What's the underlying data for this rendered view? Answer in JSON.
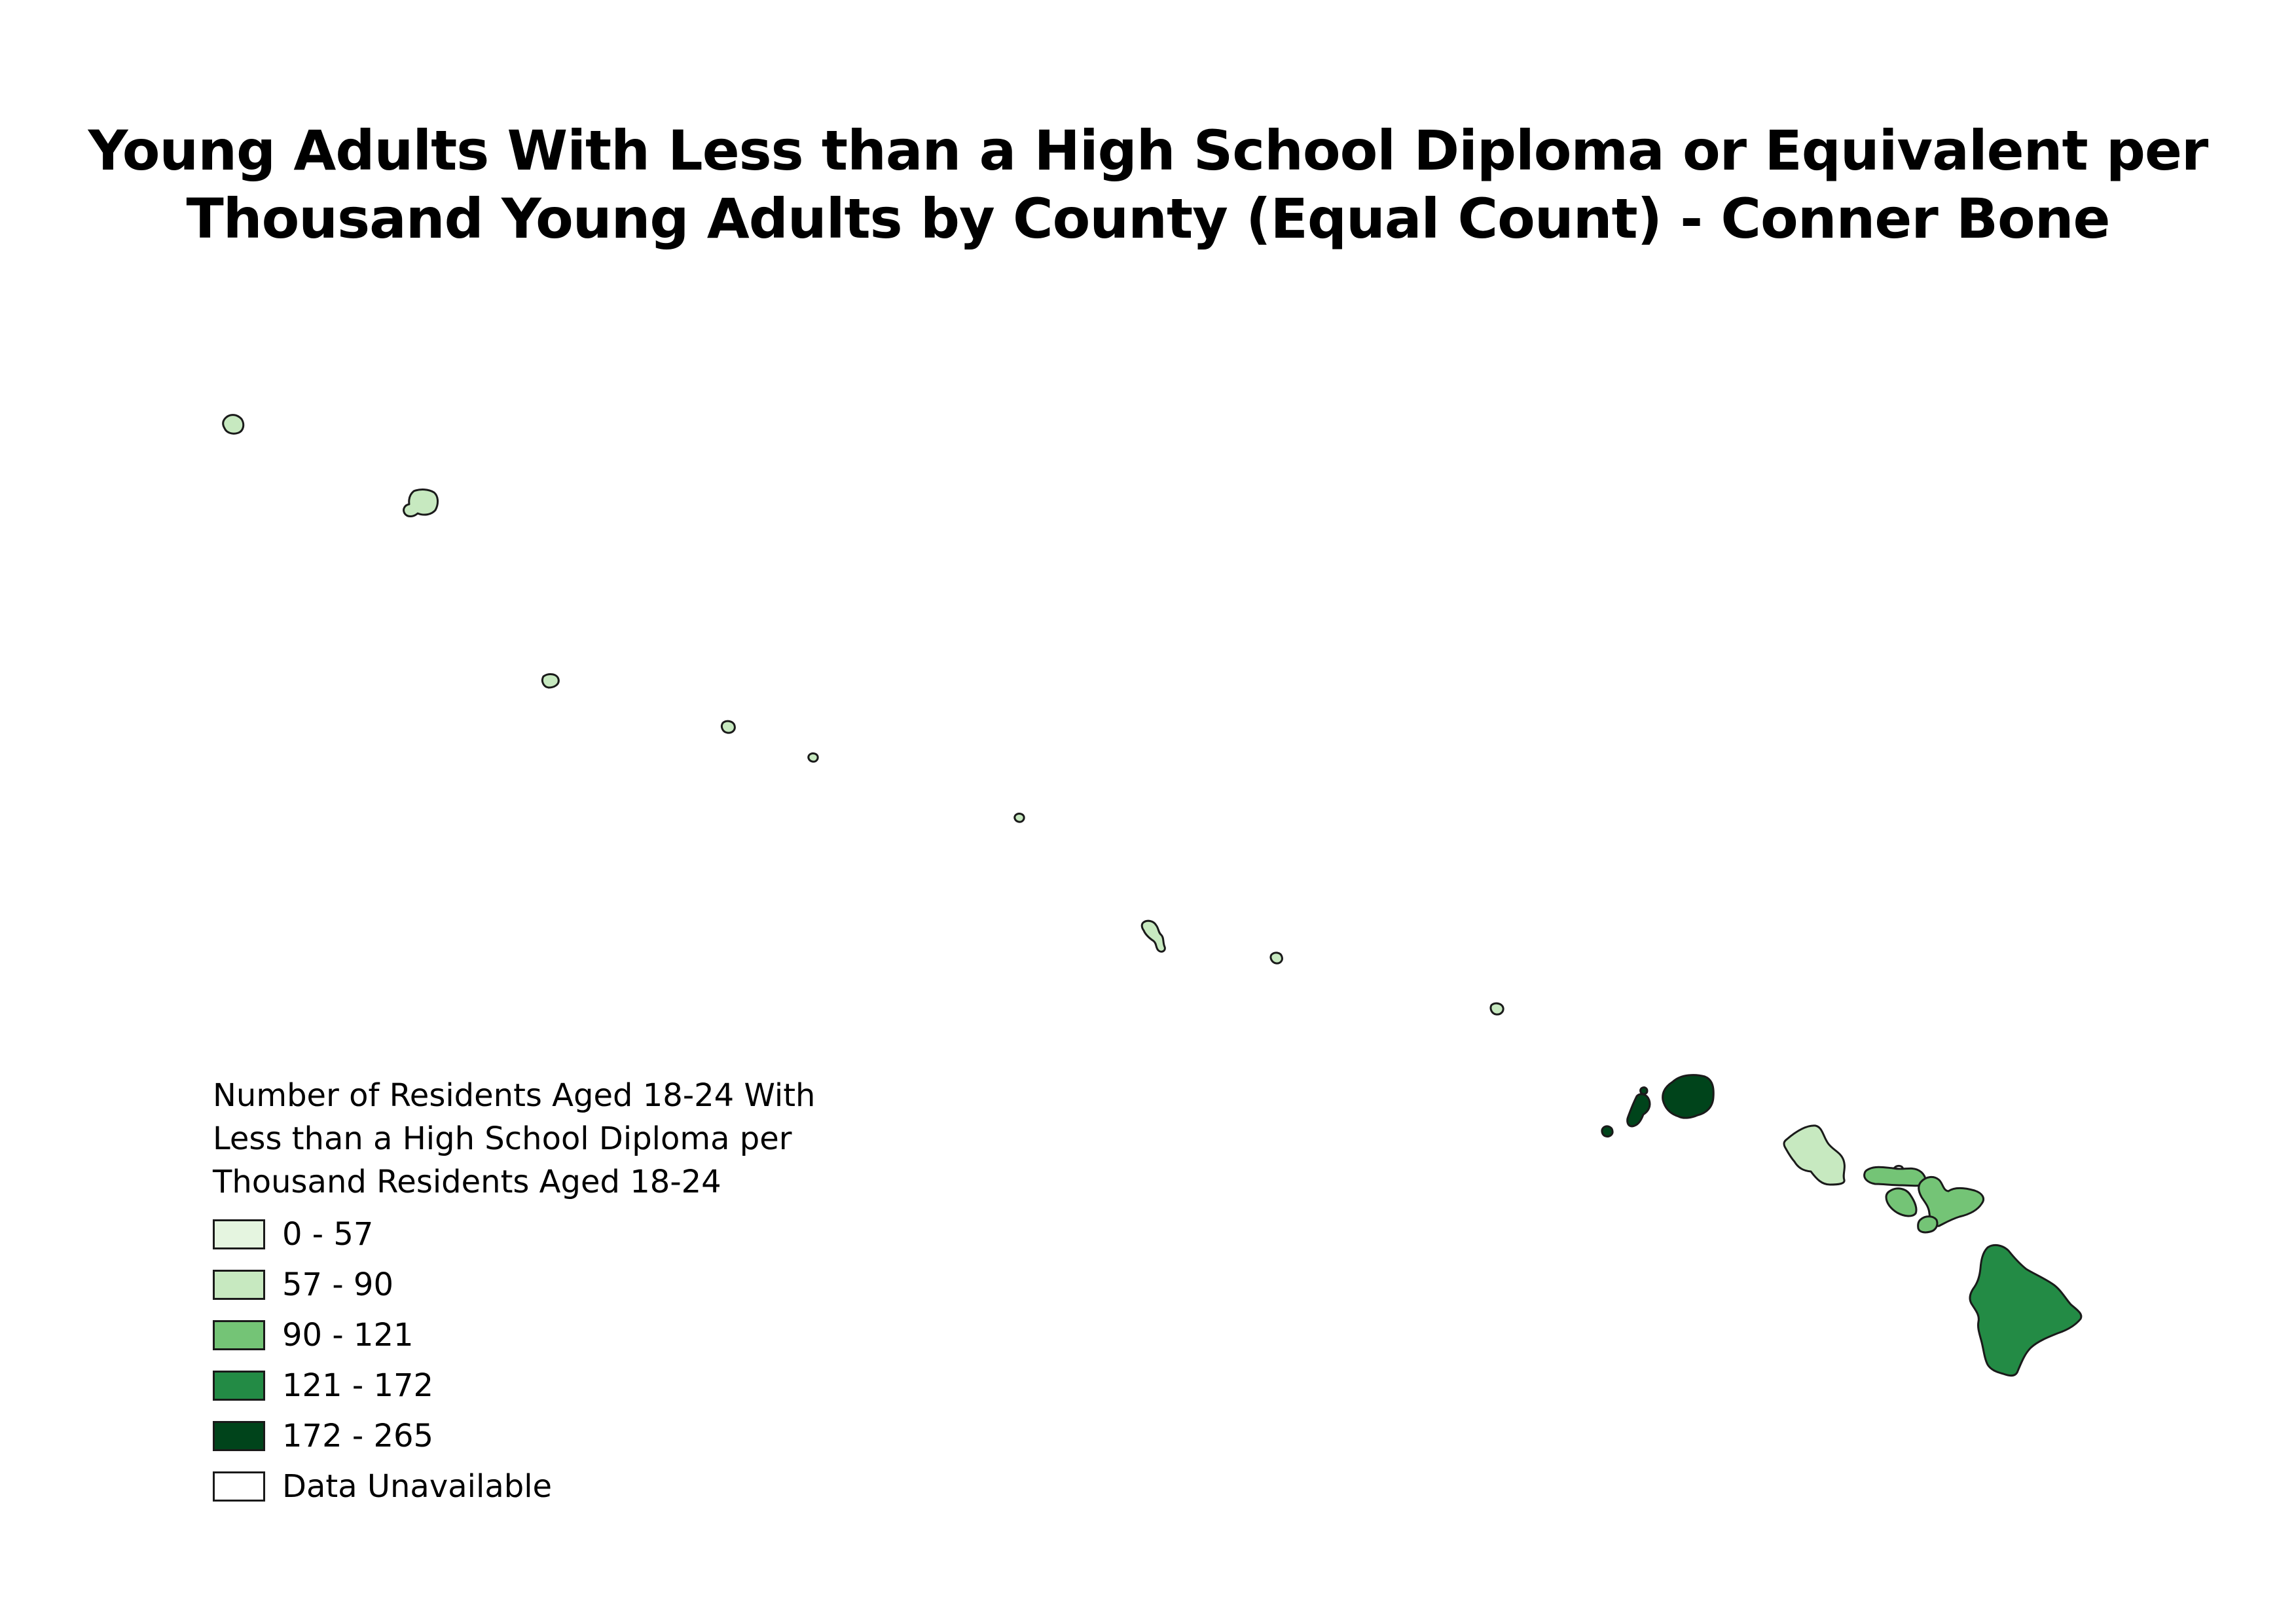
{
  "title": {
    "line1": "Young Adults With Less than a High School Diploma or Equivalent per",
    "line2": "Thousand Young Adults by County (Equal Count) - Conner Bone"
  },
  "legend": {
    "title": "Number of Residents Aged 18-24 With\nLess than a High School Diploma per\nThousand Residents Aged 18-24",
    "classes": [
      {
        "label": "0 - 57",
        "color": "#e5f5e0"
      },
      {
        "label": "57 - 90",
        "color": "#c7e9c0"
      },
      {
        "label": "90 - 121",
        "color": "#74c476"
      },
      {
        "label": "121 - 172",
        "color": "#238b45"
      },
      {
        "label": "172 - 265",
        "color": "#00441b"
      },
      {
        "label": "Data Unavailable",
        "color": "#ffffff"
      }
    ]
  },
  "map": {
    "stroke_color": "#1a1a1a",
    "regions": [
      {
        "name": "Kure Atoll",
        "class": 1
      },
      {
        "name": "Midway Atoll",
        "class": 1
      },
      {
        "name": "Pearl and Hermes Atoll",
        "class": 1
      },
      {
        "name": "Lisianski Island",
        "class": 1
      },
      {
        "name": "Laysan Island",
        "class": 1
      },
      {
        "name": "Gardner Pinnacles",
        "class": 1
      },
      {
        "name": "French Frigate Shoals",
        "class": 1
      },
      {
        "name": "Necker Island",
        "class": 1
      },
      {
        "name": "Nihoa",
        "class": 1
      },
      {
        "name": "Kauai County",
        "class": 4
      },
      {
        "name": "Honolulu County",
        "class": 1
      },
      {
        "name": "Kalawao County",
        "class": 5
      },
      {
        "name": "Maui County",
        "class": 2
      },
      {
        "name": "Hawaii County",
        "class": 3
      }
    ]
  }
}
